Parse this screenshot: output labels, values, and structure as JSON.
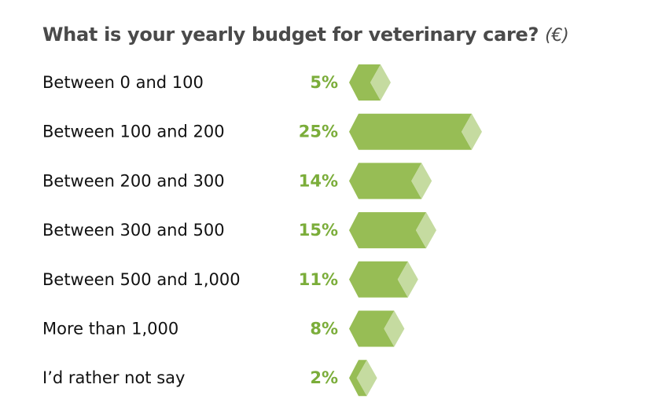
{
  "chart_data": {
    "type": "bar",
    "orientation": "horizontal",
    "title": "What is your yearly budget for veterinary care?",
    "title_unit": "(€)",
    "categories": [
      "Between 0 and 100",
      "Between 100 and 200",
      "Between 200 and 300",
      "Between 300 and 500",
      "Between 500 and 1,000",
      "More than 1,000",
      "I’d rather not say"
    ],
    "values": [
      5,
      25,
      14,
      15,
      11,
      8,
      2
    ],
    "value_labels": [
      "5%",
      "25%",
      "14%",
      "15%",
      "11%",
      "8%",
      "2%"
    ],
    "unit": "%",
    "colors": {
      "bar": "#97bd55",
      "bar_tip": "#c5dba0",
      "value_text": "#7bad3a",
      "title": "#4a4a4a"
    },
    "grid": false
  }
}
